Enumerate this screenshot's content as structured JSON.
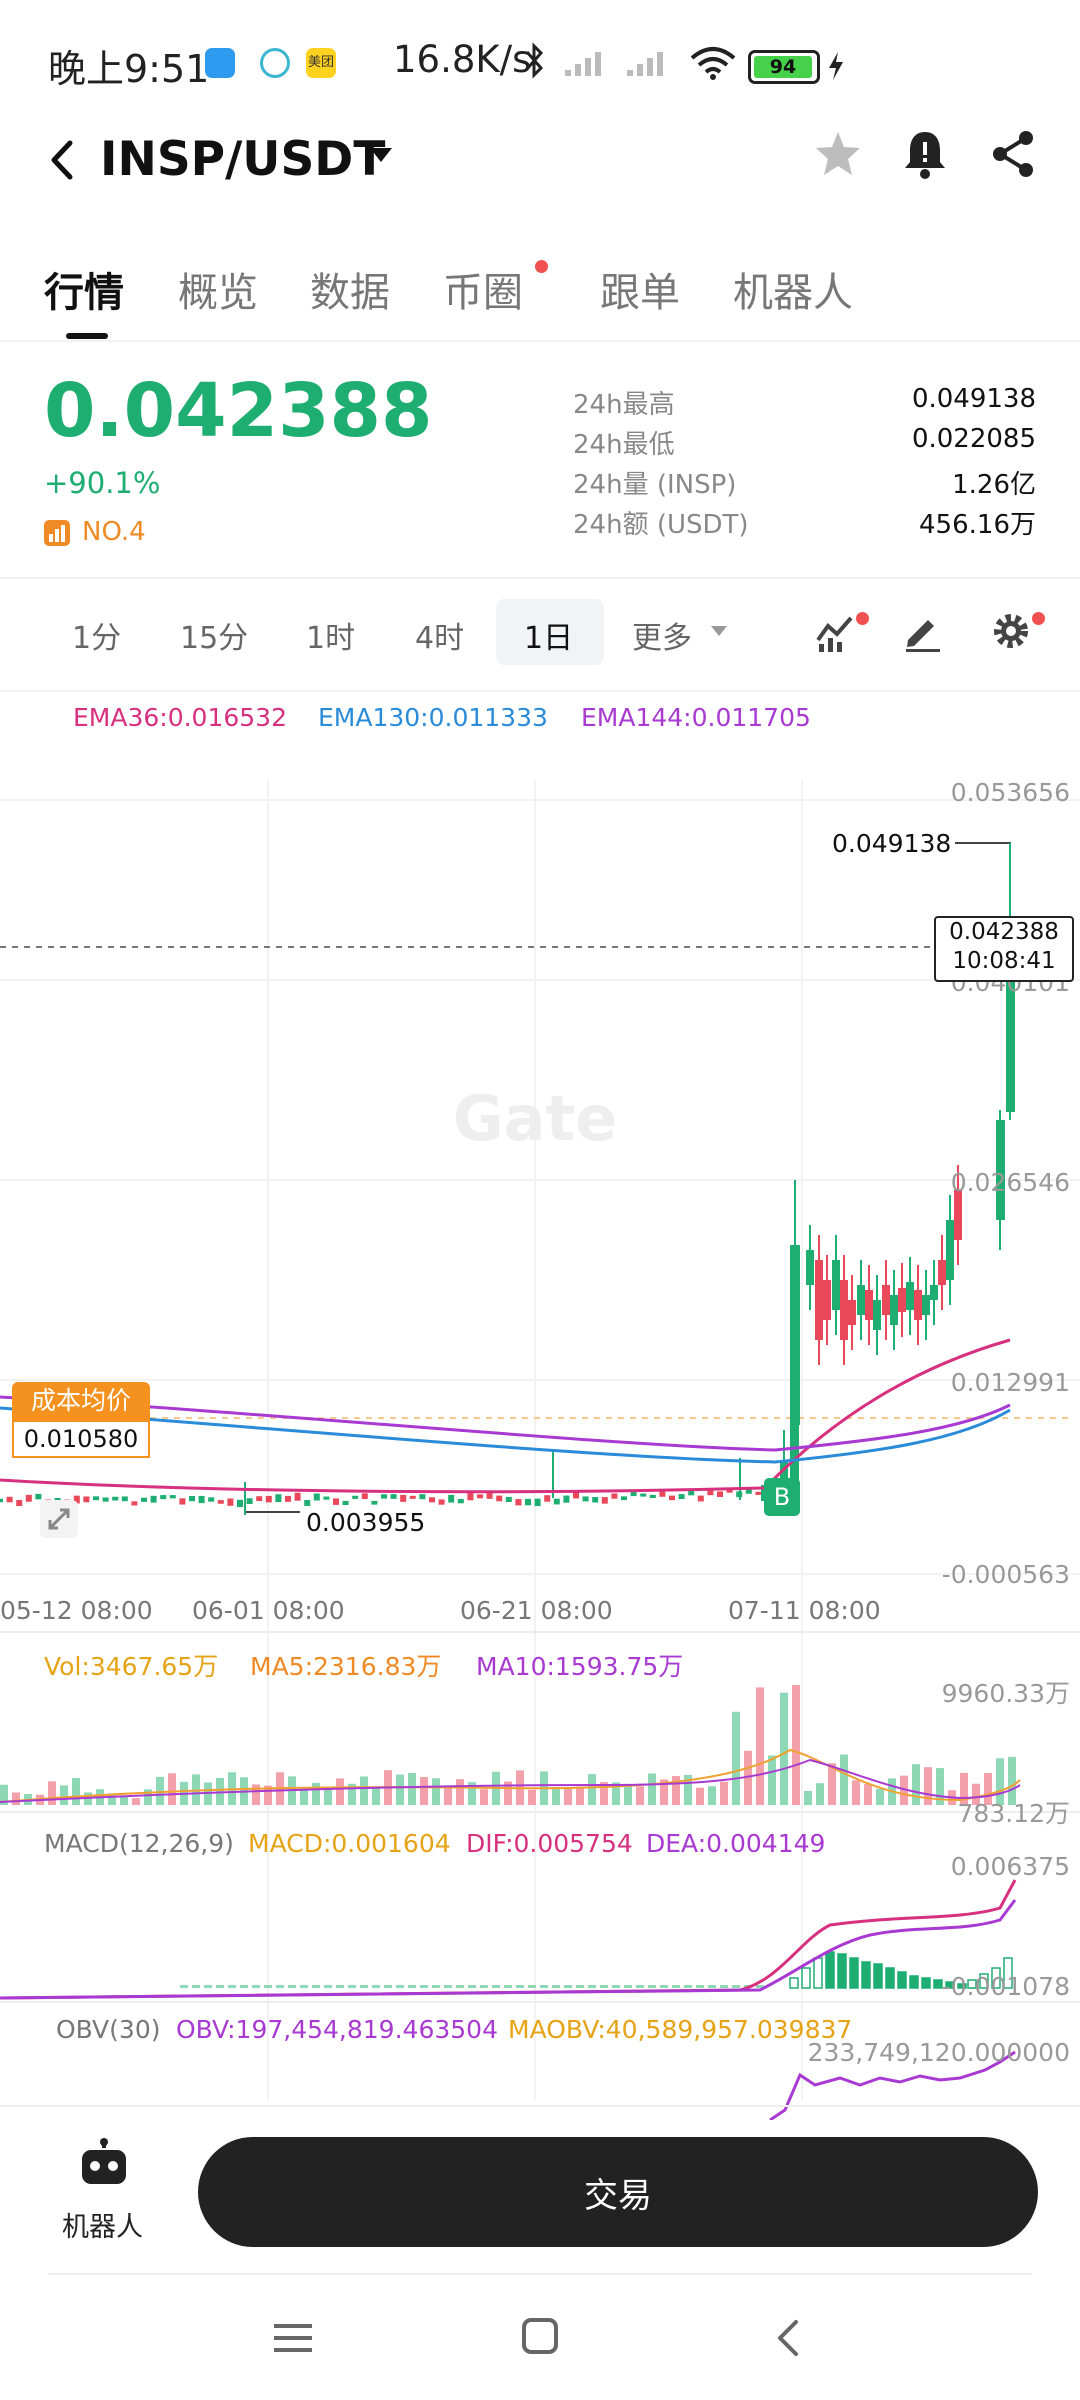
{
  "status_bar": {
    "time": "晚上9:51",
    "app_badge_text": "美团",
    "net_speed": "16.8K/s",
    "battery": "94"
  },
  "header": {
    "pair": "INSP/USDT"
  },
  "tabs": [
    "行情",
    "概览",
    "数据",
    "币圈",
    "跟单",
    "机器人"
  ],
  "ticker": {
    "last_price": "0.042388",
    "change_pct": "+90.1%",
    "rank": "NO.4",
    "stats": [
      {
        "label": "24h最高",
        "value": "0.049138"
      },
      {
        "label": "24h最低",
        "value": "0.022085"
      },
      {
        "label": "24h量 (INSP)",
        "value": "1.26亿"
      },
      {
        "label": "24h额 (USDT)",
        "value": "456.16万"
      }
    ]
  },
  "intervals": {
    "items": [
      "1分",
      "15分",
      "1时",
      "4时",
      "1日"
    ],
    "selected": "1日",
    "more_label": "更多"
  },
  "main_chart": {
    "ema_legend": {
      "ema36": "EMA36:0.016532",
      "ema130": "EMA130:0.011333",
      "ema144": "EMA144:0.011705"
    },
    "price_axis": [
      "0.053656",
      "0.040101",
      "0.026546",
      "0.012991",
      "-0.000563"
    ],
    "high_marker": "0.049138",
    "current_price_tag": {
      "price": "0.042388",
      "countdown": "10:08:41"
    },
    "cost_label": "成本均价",
    "cost_value": "0.010580",
    "low_marker": "0.003955",
    "buy_marker": "B",
    "watermark": "Gate",
    "dates": [
      "05-12 08:00",
      "06-01 08:00",
      "06-21 08:00",
      "07-11 08:00"
    ]
  },
  "volume_panel": {
    "vol": "Vol:3467.65万",
    "ma5": "MA5:2316.83万",
    "ma10": "MA10:1593.75万",
    "axis_top": "9960.33万",
    "axis_bottom": "783.12万"
  },
  "macd_panel": {
    "title": "MACD(12,26,9)",
    "macd": "MACD:0.001604",
    "dif": "DIF:0.005754",
    "dea": "DEA:0.004149",
    "axis_top": "0.006375",
    "axis_bottom": "-0.001078"
  },
  "obv_panel": {
    "title": "OBV(30)",
    "obv": "OBV:197,454,819.463504",
    "maobv": "MAOBV:40,589,957.039837",
    "axis_top": "233,749,120.000000"
  },
  "bottom": {
    "robot_label": "机器人",
    "trade_label": "交易"
  },
  "colors": {
    "up": "#1fae72",
    "down": "#e9485b",
    "ema36": "#d6307f",
    "ema130": "#2a8bd8",
    "ema144": "#a83ad2",
    "accent_orange": "#f08a24"
  }
}
